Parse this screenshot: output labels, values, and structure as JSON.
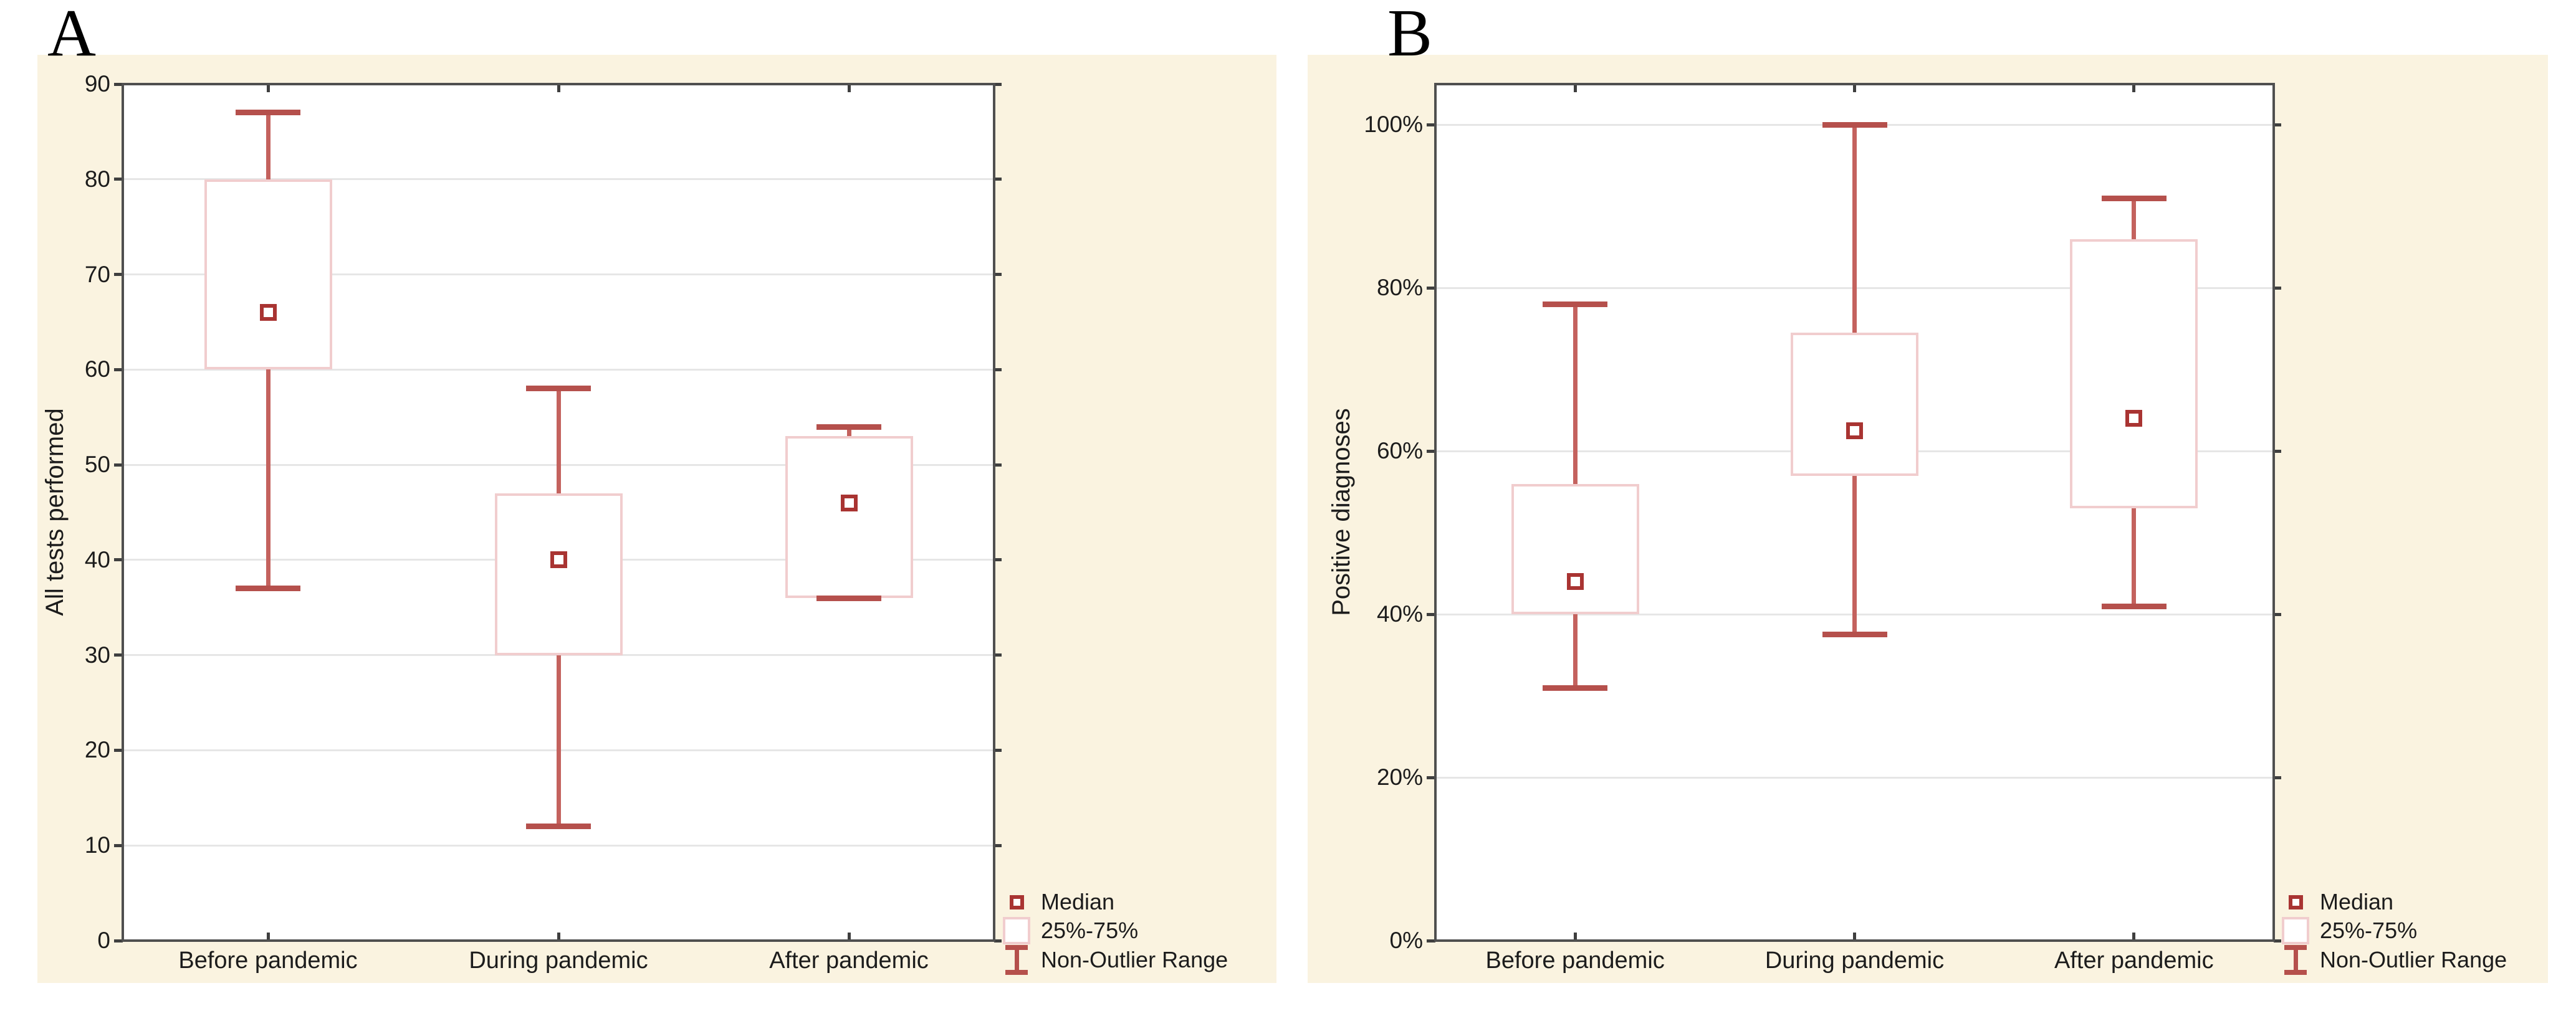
{
  "figure": {
    "background": "#ffffff",
    "colors": {
      "panel-bg": "#faf3e0",
      "plot-bg": "#ffffff",
      "frame": "#4f4f4f",
      "grid": "#e6e6e6",
      "tick": "#3f3f3f",
      "text": "#1c1c1c",
      "box-border": "#f1cdce",
      "whisker": "#c4625e",
      "whisker-cap": "#b5504c",
      "median": "#a93432"
    }
  },
  "chart_data": [
    {
      "type": "box",
      "panel_label": "A",
      "title": "",
      "xlabel": "",
      "ylabel": "All tests performed",
      "ylim": [
        0,
        90
      ],
      "axis_top": 90,
      "grid": "horizontal",
      "legend_position": "bottom-right",
      "yticks": [
        {
          "value": 0,
          "label": "0"
        },
        {
          "value": 10,
          "label": "10"
        },
        {
          "value": 20,
          "label": "20"
        },
        {
          "value": 30,
          "label": "30"
        },
        {
          "value": 40,
          "label": "40"
        },
        {
          "value": 50,
          "label": "50"
        },
        {
          "value": 60,
          "label": "60"
        },
        {
          "value": 70,
          "label": "70"
        },
        {
          "value": 80,
          "label": "80"
        },
        {
          "value": 90,
          "label": "90"
        }
      ],
      "categories": [
        "Before pandemic",
        "During pandemic",
        "After pandemic"
      ],
      "series": [
        {
          "category": "Before pandemic",
          "whisker_low": 37,
          "q1": 60,
          "median": 66,
          "q3": 80,
          "whisker_high": 87
        },
        {
          "category": "During pandemic",
          "whisker_low": 12,
          "q1": 30,
          "median": 40,
          "q3": 47,
          "whisker_high": 58
        },
        {
          "category": "After pandemic",
          "whisker_low": 36,
          "q1": 36,
          "median": 46,
          "q3": 53,
          "whisker_high": 54
        }
      ],
      "legend": [
        "Median",
        "25%-75%",
        "Non-Outlier Range"
      ]
    },
    {
      "type": "box",
      "panel_label": "B",
      "title": "",
      "xlabel": "",
      "ylabel": "Positive diagnoses",
      "ylim": [
        0,
        100
      ],
      "axis_top": 105,
      "grid": "horizontal",
      "legend_position": "bottom-right",
      "yticks": [
        {
          "value": 0,
          "label": "0%"
        },
        {
          "value": 20,
          "label": "20%"
        },
        {
          "value": 40,
          "label": "40%"
        },
        {
          "value": 60,
          "label": "60%"
        },
        {
          "value": 80,
          "label": "80%"
        },
        {
          "value": 100,
          "label": "100%"
        }
      ],
      "categories": [
        "Before pandemic",
        "During pandemic",
        "After pandemic"
      ],
      "series": [
        {
          "category": "Before pandemic",
          "whisker_low": 31,
          "q1": 40,
          "median": 44,
          "q3": 56,
          "whisker_high": 78
        },
        {
          "category": "During pandemic",
          "whisker_low": 37.5,
          "q1": 57,
          "median": 62.5,
          "q3": 74.5,
          "whisker_high": 100
        },
        {
          "category": "After pandemic",
          "whisker_low": 41,
          "q1": 53,
          "median": 64,
          "q3": 86,
          "whisker_high": 91
        }
      ],
      "legend": [
        "Median",
        "25%-75%",
        "Non-Outlier Range"
      ]
    }
  ]
}
